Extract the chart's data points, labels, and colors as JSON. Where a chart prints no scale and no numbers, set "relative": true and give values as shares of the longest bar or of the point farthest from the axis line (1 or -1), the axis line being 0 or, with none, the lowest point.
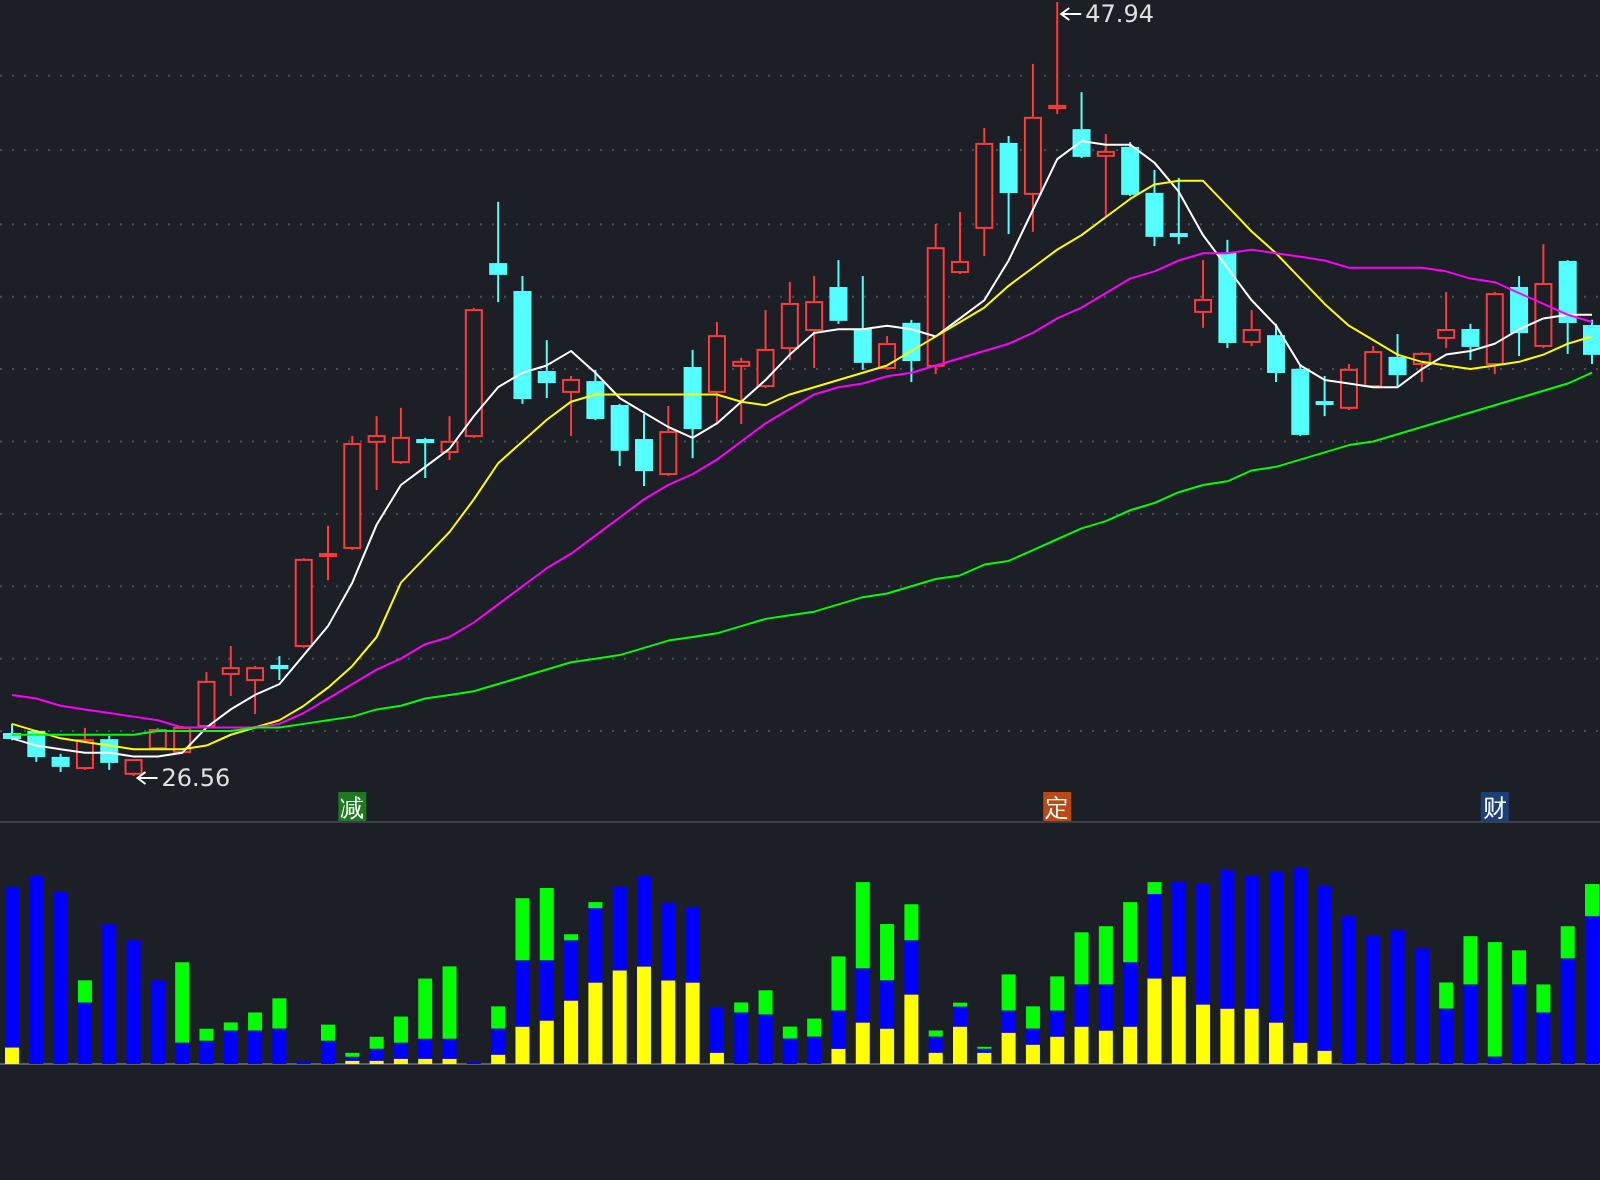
{
  "chart_data": [
    {
      "type": "candlestick",
      "tick_labels": "x",
      "grid": "y",
      "categories": [
        null,
        null,
        null,
        null,
        null,
        null,
        null,
        null,
        null,
        null,
        null,
        null,
        null,
        null,
        "减",
        null,
        null,
        null,
        null,
        null,
        null,
        null,
        null,
        null,
        null,
        null,
        null,
        null,
        null,
        null,
        null,
        null,
        null,
        null,
        null,
        null,
        null,
        null,
        null,
        null,
        null,
        null,
        null,
        "定",
        null,
        null,
        null,
        null,
        null,
        null,
        null,
        null,
        null,
        null,
        null,
        null,
        null,
        null,
        null,
        null,
        null,
        "财",
        null,
        null,
        null,
        null
      ],
      "ohlc": [
        [
          27.72,
          28.0,
          27.55,
          27.61
        ],
        [
          27.78,
          27.83,
          26.95,
          27.11
        ],
        [
          27.06,
          27.17,
          26.67,
          26.84
        ],
        [
          26.78,
          27.89,
          26.73,
          27.55
        ],
        [
          27.55,
          27.67,
          26.73,
          26.95
        ],
        [
          26.62,
          27.0,
          26.56,
          27.0
        ],
        [
          27.33,
          27.89,
          27.33,
          27.83
        ],
        [
          27.22,
          27.94,
          27.17,
          27.89
        ],
        [
          27.94,
          29.43,
          27.89,
          29.16
        ],
        [
          29.38,
          30.15,
          28.77,
          29.54
        ],
        [
          29.21,
          29.6,
          28.27,
          29.54
        ],
        [
          29.6,
          29.87,
          29.21,
          29.54
        ],
        [
          30.15,
          32.58,
          30.1,
          32.53
        ],
        [
          32.64,
          33.47,
          31.97,
          32.69
        ],
        [
          32.86,
          35.95,
          32.8,
          35.73
        ],
        [
          35.79,
          36.5,
          34.46,
          35.95
        ],
        [
          35.23,
          36.73,
          35.18,
          35.9
        ],
        [
          35.84,
          35.9,
          34.79,
          35.79
        ],
        [
          35.51,
          36.5,
          35.29,
          35.79
        ],
        [
          35.95,
          39.49,
          35.9,
          39.43
        ],
        [
          40.7,
          42.42,
          39.65,
          40.43
        ],
        [
          39.93,
          40.37,
          36.84,
          37.0
        ],
        [
          37.72,
          38.6,
          37.0,
          37.44
        ],
        [
          37.17,
          37.61,
          35.95,
          37.5
        ],
        [
          37.44,
          37.78,
          36.39,
          36.45
        ],
        [
          36.78,
          36.84,
          35.12,
          35.57
        ],
        [
          35.84,
          36.56,
          34.57,
          35.01
        ],
        [
          34.9,
          36.78,
          34.85,
          36.06
        ],
        [
          37.83,
          38.33,
          35.34,
          36.17
        ],
        [
          37.17,
          39.1,
          36.28,
          38.71
        ],
        [
          37.89,
          38.11,
          36.28,
          38.0
        ],
        [
          37.33,
          39.43,
          37.28,
          38.33
        ],
        [
          38.38,
          40.21,
          38.05,
          39.6
        ],
        [
          38.88,
          40.37,
          37.83,
          39.65
        ],
        [
          40.04,
          40.81,
          39.05,
          39.16
        ],
        [
          38.88,
          40.37,
          37.78,
          38.0
        ],
        [
          37.83,
          38.71,
          37.78,
          38.49
        ],
        [
          39.05,
          39.16,
          37.44,
          38.05
        ],
        [
          37.89,
          41.81,
          37.66,
          41.14
        ],
        [
          40.48,
          42.14,
          40.43,
          40.76
        ],
        [
          41.7,
          44.46,
          40.92,
          44.02
        ],
        [
          44.02,
          44.24,
          41.53,
          42.69
        ],
        [
          42.64,
          46.23,
          41.59,
          44.74
        ],
        [
          45.01,
          47.94,
          44.85,
          45.07
        ],
        [
          44.4,
          45.45,
          43.63,
          43.69
        ],
        [
          43.69,
          44.29,
          42.03,
          43.8
        ],
        [
          43.91,
          44.07,
          42.58,
          42.64
        ],
        [
          42.64,
          43.3,
          41.2,
          41.48
        ],
        [
          41.53,
          43.08,
          41.25,
          41.48
        ],
        [
          39.38,
          40.81,
          38.94,
          39.71
        ],
        [
          40.98,
          41.37,
          38.38,
          38.55
        ],
        [
          38.55,
          39.43,
          38.44,
          38.88
        ],
        [
          38.71,
          39.05,
          37.44,
          37.72
        ],
        [
          37.78,
          37.94,
          35.95,
          36.01
        ],
        [
          36.89,
          37.61,
          36.5,
          36.84
        ],
        [
          36.73,
          37.94,
          36.67,
          37.78
        ],
        [
          37.33,
          38.44,
          37.28,
          38.27
        ],
        [
          38.11,
          38.77,
          37.33,
          37.66
        ],
        [
          37.94,
          38.27,
          37.44,
          38.22
        ],
        [
          38.66,
          39.93,
          38.38,
          38.88
        ],
        [
          38.88,
          39.05,
          38.05,
          38.44
        ],
        [
          37.94,
          39.93,
          37.66,
          39.87
        ],
        [
          40.04,
          40.37,
          38.16,
          38.82
        ],
        [
          38.44,
          41.25,
          38.38,
          40.15
        ],
        [
          40.76,
          40.81,
          38.22,
          39.1
        ],
        [
          38.99,
          39.16,
          37.94,
          38.22
        ]
      ],
      "series": [
        {
          "type": "line",
          "color": "#ffffff",
          "values": [
            27.6,
            27.4,
            27.3,
            27.2,
            27.2,
            27.1,
            27.1,
            27.2,
            27.9,
            28.4,
            28.8,
            29.1,
            29.9,
            30.7,
            31.9,
            33.5,
            34.6,
            35.1,
            35.6,
            36.5,
            37.3,
            37.7,
            37.9,
            38.3,
            37.7,
            37.0,
            36.6,
            36.2,
            35.9,
            36.3,
            36.9,
            37.5,
            38.2,
            38.8,
            38.9,
            38.9,
            39.0,
            38.9,
            38.7,
            39.2,
            39.7,
            40.8,
            42.2,
            43.6,
            44.1,
            44.0,
            44.0,
            43.5,
            42.7,
            41.5,
            40.6,
            39.7,
            39.0,
            37.9,
            37.5,
            37.4,
            37.3,
            37.3,
            37.8,
            38.2,
            38.3,
            38.5,
            38.9,
            39.2,
            39.3,
            39.3
          ]
        },
        {
          "type": "line",
          "color": "#ffff00",
          "values": [
            28.0,
            27.8,
            27.6,
            27.5,
            27.4,
            27.3,
            27.3,
            27.3,
            27.4,
            27.7,
            27.9,
            28.1,
            28.5,
            29.0,
            29.6,
            30.4,
            31.9,
            32.6,
            33.3,
            34.2,
            35.2,
            35.8,
            36.4,
            36.9,
            37.1,
            37.1,
            37.1,
            37.1,
            37.1,
            37.1,
            36.9,
            36.8,
            37.1,
            37.3,
            37.5,
            37.7,
            37.9,
            38.3,
            38.7,
            39.1,
            39.5,
            40.1,
            40.6,
            41.1,
            41.5,
            42.0,
            42.5,
            42.9,
            43.0,
            43.0,
            42.3,
            41.6,
            41.0,
            40.3,
            39.6,
            39.0,
            38.6,
            38.2,
            38.0,
            37.9,
            37.8,
            37.9,
            38.0,
            38.2,
            38.5,
            38.7
          ]
        },
        {
          "type": "line",
          "color": "#ff00ff",
          "values": [
            28.8,
            28.7,
            28.5,
            28.4,
            28.3,
            28.2,
            28.1,
            27.9,
            27.9,
            27.9,
            27.9,
            28.0,
            28.3,
            28.7,
            29.1,
            29.5,
            29.8,
            30.2,
            30.4,
            30.8,
            31.3,
            31.8,
            32.3,
            32.7,
            33.2,
            33.7,
            34.2,
            34.6,
            34.9,
            35.3,
            35.8,
            36.3,
            36.7,
            37.1,
            37.3,
            37.4,
            37.6,
            37.7,
            37.9,
            38.1,
            38.3,
            38.5,
            38.8,
            39.2,
            39.5,
            39.9,
            40.3,
            40.5,
            40.8,
            41.0,
            41.0,
            41.1,
            41.0,
            40.9,
            40.8,
            40.6,
            40.6,
            40.6,
            40.6,
            40.5,
            40.3,
            40.2,
            39.9,
            39.6,
            39.3,
            39.1
          ]
        },
        {
          "type": "line",
          "color": "#00ff00",
          "values": [
            27.7,
            27.7,
            27.7,
            27.7,
            27.7,
            27.7,
            27.8,
            27.8,
            27.8,
            27.8,
            27.9,
            27.9,
            28.0,
            28.1,
            28.2,
            28.4,
            28.5,
            28.7,
            28.8,
            28.9,
            29.1,
            29.3,
            29.5,
            29.7,
            29.8,
            29.9,
            30.1,
            30.3,
            30.4,
            30.5,
            30.7,
            30.9,
            31.0,
            31.1,
            31.3,
            31.5,
            31.6,
            31.8,
            32.0,
            32.1,
            32.4,
            32.5,
            32.8,
            33.1,
            33.4,
            33.6,
            33.9,
            34.1,
            34.4,
            34.6,
            34.7,
            35.0,
            35.1,
            35.3,
            35.5,
            35.7,
            35.8,
            36.0,
            36.2,
            36.4,
            36.6,
            36.8,
            37.0,
            37.2,
            37.4,
            37.7
          ]
        }
      ],
      "yticks": [
        {
          "value": 27.8,
          "label": null
        },
        {
          "value": 29.8,
          "label": null
        },
        {
          "value": 31.8,
          "label": null
        },
        {
          "value": 33.8,
          "label": null
        },
        {
          "value": 35.8,
          "label": null
        },
        {
          "value": 37.8,
          "label": null
        },
        {
          "value": 39.8,
          "label": null
        },
        {
          "value": 41.8,
          "label": null
        },
        {
          "value": 43.85,
          "label": null
        },
        {
          "value": 45.9,
          "label": null
        }
      ],
      "annotations": [
        "47.94",
        "26.56"
      ]
    },
    {
      "type": "bar",
      "stacked": true,
      "relative": true,
      "categories": [
        null,
        null,
        null,
        null,
        null,
        null,
        null,
        null,
        null,
        null,
        null,
        null,
        null,
        null,
        null,
        null,
        null,
        null,
        null,
        null,
        null,
        null,
        null,
        null,
        null,
        null,
        null,
        null,
        null,
        null,
        null,
        null,
        null,
        null,
        null,
        null,
        null,
        null,
        null,
        null,
        null,
        null,
        null,
        null,
        null,
        null,
        null,
        null,
        null,
        null,
        null,
        null,
        null,
        null,
        null,
        null,
        null,
        null,
        null,
        null,
        null,
        null,
        null,
        null,
        null,
        null
      ],
      "series": [
        {
          "color": "#ffff00",
          "values": [
            0.085,
            null,
            null,
            null,
            null,
            null,
            null,
            null,
            null,
            null,
            null,
            null,
            null,
            null,
            0.017,
            0.017,
            0.027,
            0.027,
            0.027,
            null,
            0.048,
            0.191,
            0.222,
            0.324,
            0.416,
            0.478,
            0.498,
            0.427,
            0.416,
            0.058,
            null,
            null,
            null,
            null,
            0.078,
            0.212,
            0.181,
            0.355,
            0.058,
            0.191,
            0.058,
            0.16,
            0.099,
            0.14,
            0.191,
            0.171,
            0.191,
            0.437,
            0.447,
            0.304,
            0.283,
            0.283,
            0.212,
            0.109,
            0.068,
            null,
            null,
            null,
            null,
            null,
            null,
            null,
            null,
            null,
            null,
            null
          ]
        },
        {
          "color": "#0000ff",
          "values": [
            0.819,
            0.959,
            0.877,
            0.314,
            0.713,
            0.631,
            0.427,
            0.109,
            0.119,
            0.171,
            0.171,
            0.181,
            0.01,
            0.119,
            0.02,
            0.061,
            0.082,
            0.102,
            0.102,
            0.01,
            0.133,
            0.338,
            0.307,
            0.307,
            0.379,
            0.427,
            0.461,
            0.396,
            0.386,
            0.232,
            0.263,
            0.253,
            0.13,
            0.14,
            0.195,
            0.276,
            0.246,
            0.276,
            0.082,
            0.102,
            0.02,
            0.113,
            0.082,
            0.133,
            0.215,
            0.235,
            0.328,
            0.43,
            0.481,
            0.614,
            0.706,
            0.676,
            0.768,
            0.891,
            0.84,
            0.754,
            0.652,
            0.683,
            0.59,
            0.283,
            0.406,
            0.038,
            0.406,
            0.263,
            0.539,
            0.754
          ]
        },
        {
          "color": "#00ff00",
          "values": [
            null,
            null,
            null,
            0.113,
            null,
            null,
            null,
            0.41,
            0.061,
            0.041,
            0.092,
            0.154,
            null,
            0.082,
            0.02,
            0.061,
            0.133,
            0.307,
            0.369,
            null,
            0.113,
            0.317,
            0.369,
            0.031,
            0.031,
            null,
            null,
            null,
            null,
            null,
            0.051,
            0.123,
            0.061,
            0.092,
            0.276,
            0.44,
            0.287,
            0.184,
            0.031,
            0.02,
            0.01,
            0.184,
            0.113,
            0.174,
            0.266,
            0.297,
            0.307,
            0.061,
            null,
            null,
            null,
            null,
            null,
            null,
            null,
            null,
            null,
            null,
            null,
            0.133,
            0.246,
            0.584,
            0.174,
            0.143,
            0.164,
            0.164
          ]
        }
      ]
    }
  ]
}
